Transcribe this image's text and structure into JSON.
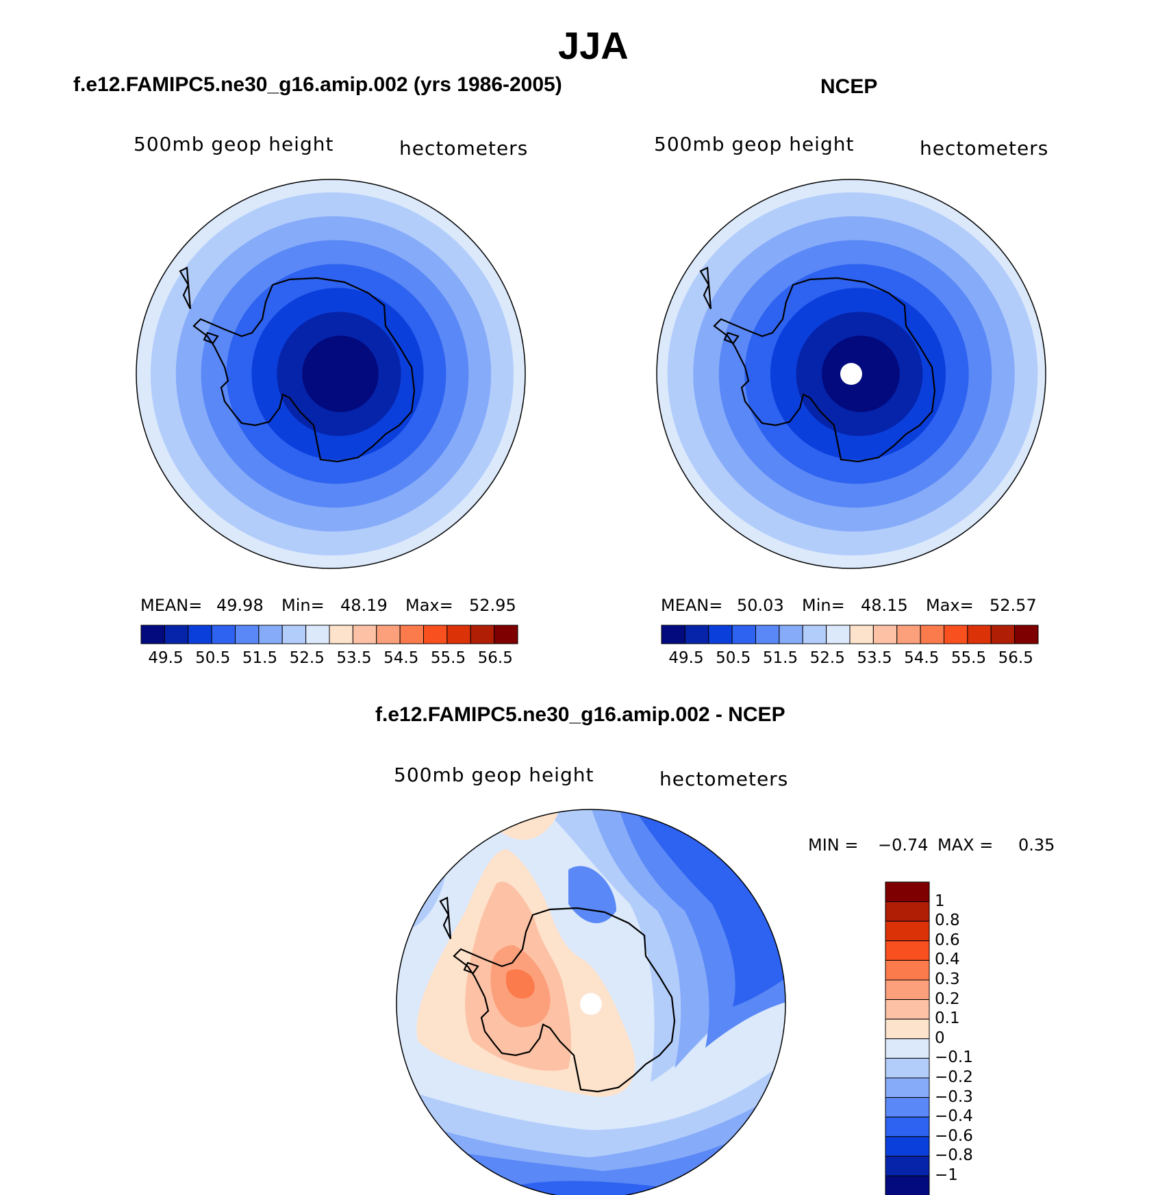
{
  "figure": {
    "season_title": "JJA",
    "land_color": "#000000"
  },
  "chart_data": [
    {
      "type": "heatmap",
      "projection": "south-polar-stereographic",
      "panel_title": "f.e12.FAMIPC5.ne30_g16.amip.002 (yrs 1986-2005)",
      "left_label": "500mb geop height",
      "right_label": "hectometers",
      "stats": {
        "mean_label": "MEAN=",
        "mean": "49.98",
        "min_label": "Min=",
        "min": "48.19",
        "max_label": "Max=",
        "max": "52.95"
      },
      "rings_outer_to_inner": [
        {
          "value": 53.0,
          "color": "#dbe9fb"
        },
        {
          "value": 52.5,
          "color": "#b3cdfb"
        },
        {
          "value": 52.0,
          "color": "#86abf9"
        },
        {
          "value": 51.5,
          "color": "#5a88f6"
        },
        {
          "value": 51.0,
          "color": "#2e62f0"
        },
        {
          "value": 50.5,
          "color": "#0b3fdc"
        },
        {
          "value": 50.0,
          "color": "#0624aa"
        },
        {
          "value": 49.5,
          "color": "#030a7e"
        }
      ],
      "pole_missing": false,
      "colorbar": {
        "orientation": "horizontal",
        "colors": [
          "#030a7e",
          "#0624aa",
          "#0b3fdc",
          "#2e62f0",
          "#5a88f6",
          "#86abf9",
          "#b3cdfb",
          "#dbe9fb",
          "#fde2cc",
          "#fdc2a5",
          "#fca07c",
          "#fb7b4c",
          "#f8501f",
          "#dc3208",
          "#b01e06",
          "#7e0000"
        ],
        "tick_labels": [
          "49.5",
          "50.5",
          "51.5",
          "52.5",
          "53.5",
          "54.5",
          "55.5",
          "56.5"
        ]
      }
    },
    {
      "type": "heatmap",
      "projection": "south-polar-stereographic",
      "panel_title": "NCEP",
      "left_label": "500mb geop height",
      "right_label": "hectometers",
      "stats": {
        "mean_label": "MEAN=",
        "mean": "50.03",
        "min_label": "Min=",
        "min": "48.15",
        "max_label": "Max=",
        "max": "52.57"
      },
      "rings_outer_to_inner": [
        {
          "value": 53.0,
          "color": "#dbe9fb"
        },
        {
          "value": 52.5,
          "color": "#b3cdfb"
        },
        {
          "value": 52.0,
          "color": "#86abf9"
        },
        {
          "value": 51.5,
          "color": "#5a88f6"
        },
        {
          "value": 51.0,
          "color": "#2e62f0"
        },
        {
          "value": 50.5,
          "color": "#0b3fdc"
        },
        {
          "value": 50.0,
          "color": "#0624aa"
        },
        {
          "value": 49.5,
          "color": "#030a7e"
        }
      ],
      "pole_missing": true,
      "colorbar": {
        "orientation": "horizontal",
        "colors": [
          "#030a7e",
          "#0624aa",
          "#0b3fdc",
          "#2e62f0",
          "#5a88f6",
          "#86abf9",
          "#b3cdfb",
          "#dbe9fb",
          "#fde2cc",
          "#fdc2a5",
          "#fca07c",
          "#fb7b4c",
          "#f8501f",
          "#dc3208",
          "#b01e06",
          "#7e0000"
        ],
        "tick_labels": [
          "49.5",
          "50.5",
          "51.5",
          "52.5",
          "53.5",
          "54.5",
          "55.5",
          "56.5"
        ]
      }
    },
    {
      "type": "heatmap",
      "projection": "south-polar-stereographic",
      "panel_title": "f.e12.FAMIPC5.ne30_g16.amip.002 - NCEP",
      "left_label": "500mb geop height",
      "right_label": "hectometers",
      "stats": {
        "min_label": "MIN =",
        "min": "−0.74",
        "max_label": "MAX =",
        "max": "0.35"
      },
      "pole_missing": true,
      "colorbar": {
        "orientation": "vertical",
        "colors_top_to_bottom": [
          "#7e0000",
          "#b01e06",
          "#dc3208",
          "#f8501f",
          "#fb7b4c",
          "#fca07c",
          "#fdc2a5",
          "#fde2cc",
          "#dbe9fb",
          "#b3cdfb",
          "#86abf9",
          "#5a88f6",
          "#2e62f0",
          "#0b3fdc",
          "#0624aa",
          "#030a7e"
        ],
        "tick_labels_top_to_bottom": [
          "1",
          "0.8",
          "0.6",
          "0.4",
          "0.3",
          "0.2",
          "0.1",
          "0",
          "−0.1",
          "−0.2",
          "−0.3",
          "−0.4",
          "−0.6",
          "−0.8",
          "−1"
        ]
      },
      "diff_palette": {
        "pos01": "#fde2cc",
        "pos02": "#fdc2a5",
        "pos03": "#fca07c",
        "pos04": "#fb7b4c",
        "neg01": "#dbe9fb",
        "neg02": "#b3cdfb",
        "neg03": "#86abf9",
        "neg04": "#5a88f6",
        "neg06": "#2e62f0",
        "neg08": "#0b3fdc"
      }
    }
  ]
}
